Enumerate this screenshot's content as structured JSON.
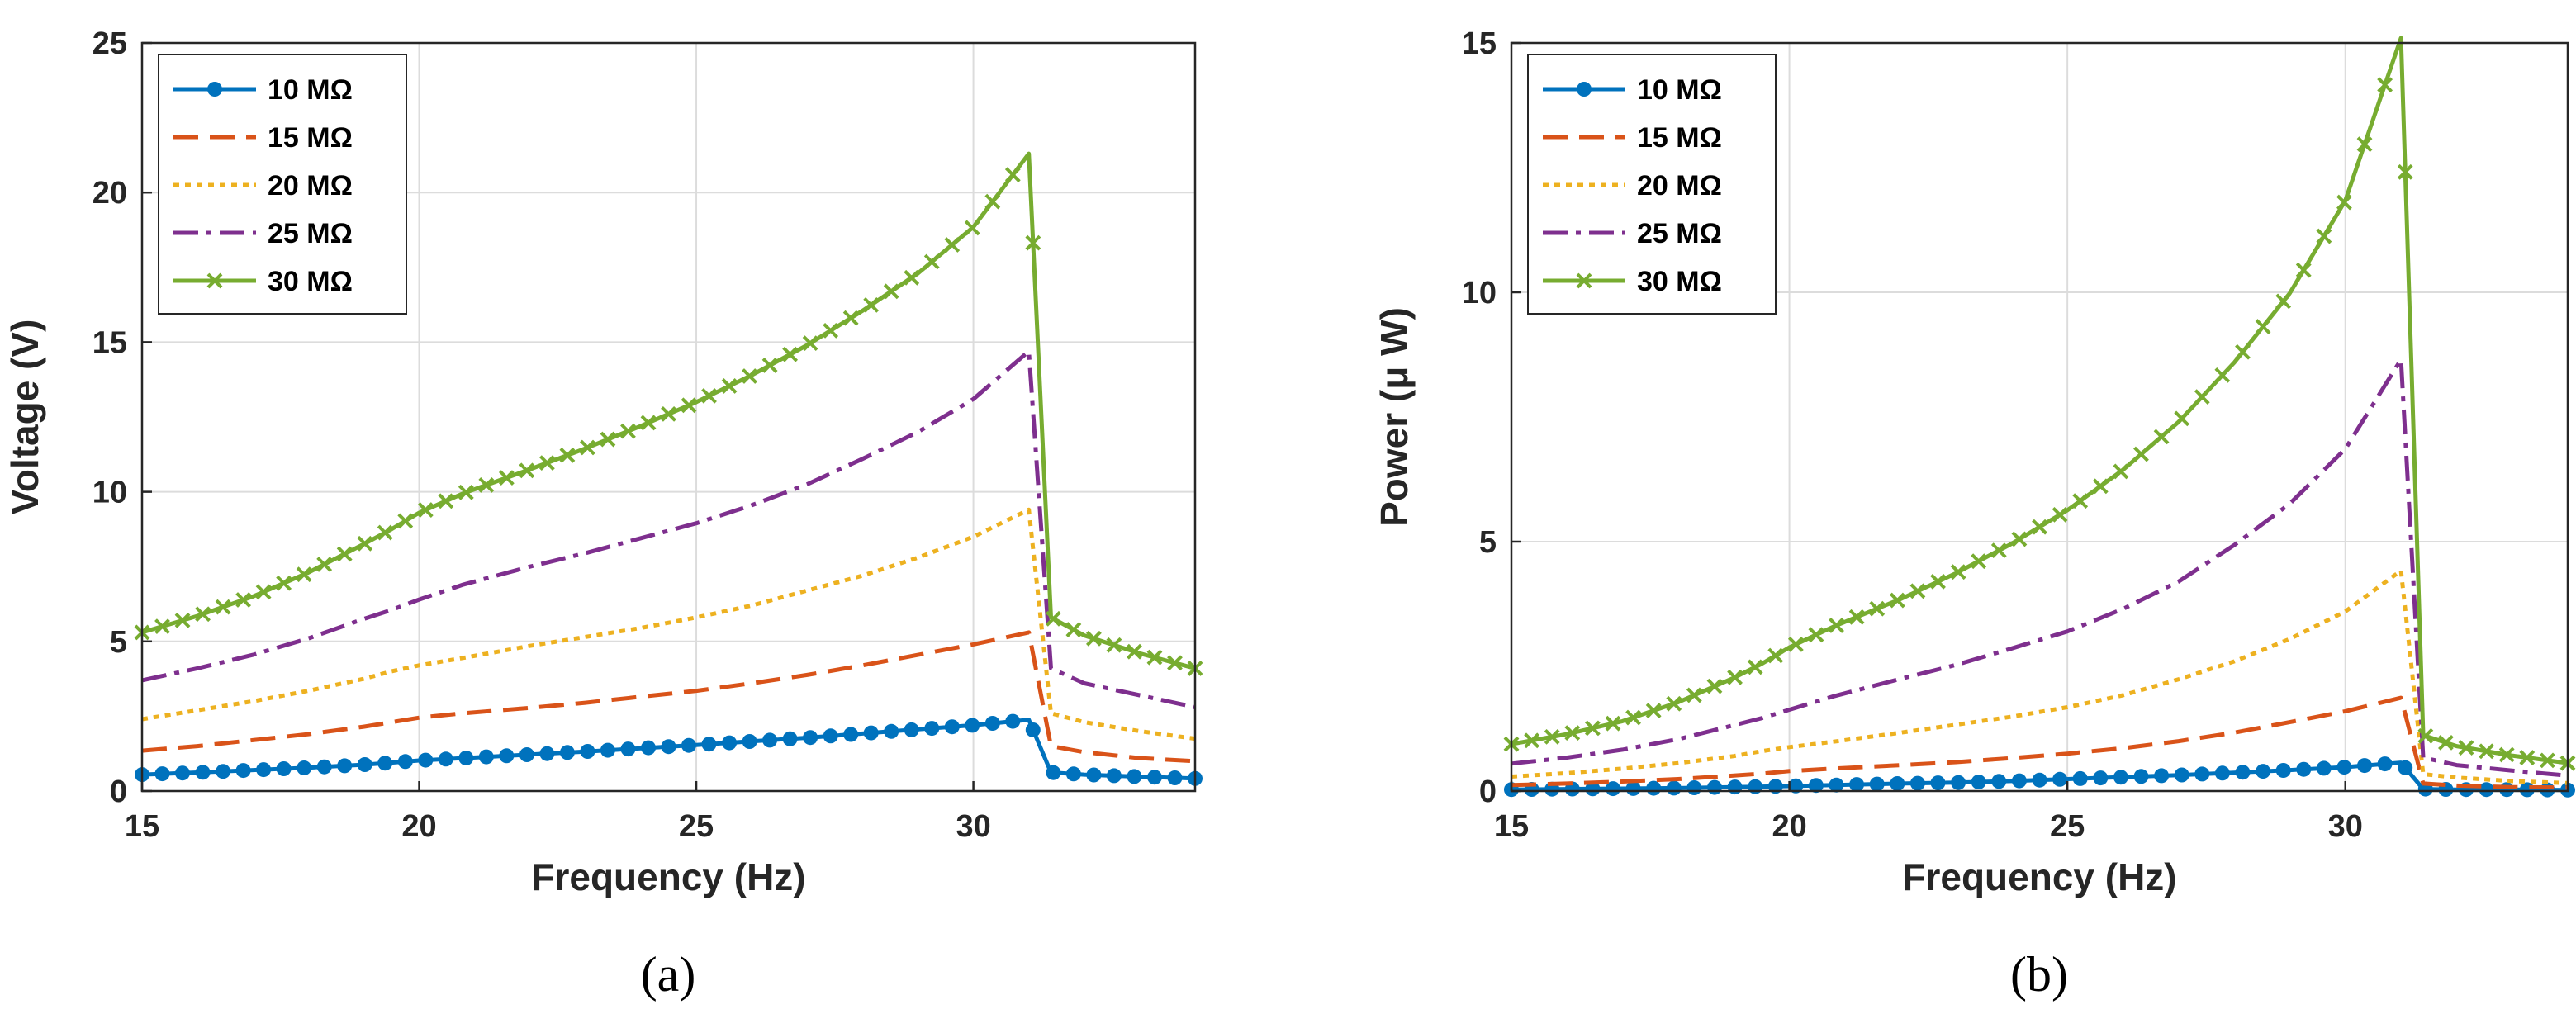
{
  "chart_data": [
    {
      "type": "line",
      "panel_label": "(a)",
      "xlabel": "Frequency (Hz)",
      "ylabel": "Voltage (V)",
      "xlim": [
        15,
        34
      ],
      "ylim": [
        0,
        25
      ],
      "xticks": [
        15,
        20,
        25,
        30
      ],
      "yticks": [
        0,
        5,
        10,
        15,
        20,
        25
      ],
      "grid": true,
      "legend_position": "top-left",
      "x": [
        15,
        16,
        17,
        18,
        19,
        19.5,
        20,
        20.8,
        22,
        23,
        24,
        25,
        26,
        27,
        28,
        29,
        30,
        31,
        31.4,
        32,
        33,
        34
      ],
      "series": [
        {
          "name": "10 MΩ",
          "color": "#0072BD",
          "style": "solid",
          "marker": "dot",
          "values": [
            0.55,
            0.62,
            0.7,
            0.78,
            0.88,
            0.95,
            1.02,
            1.1,
            1.22,
            1.32,
            1.43,
            1.54,
            1.66,
            1.78,
            1.92,
            2.06,
            2.2,
            2.38,
            0.62,
            0.55,
            0.48,
            0.42
          ]
        },
        {
          "name": "15 MΩ",
          "color": "#D95319",
          "style": "dashed",
          "marker": "none",
          "values": [
            1.35,
            1.5,
            1.7,
            1.9,
            2.15,
            2.3,
            2.45,
            2.6,
            2.78,
            2.95,
            3.15,
            3.35,
            3.6,
            3.88,
            4.2,
            4.55,
            4.9,
            5.3,
            1.5,
            1.3,
            1.1,
            1.0
          ]
        },
        {
          "name": "20 MΩ",
          "color": "#EDB120",
          "style": "dotted",
          "marker": "none",
          "values": [
            2.4,
            2.7,
            3.0,
            3.35,
            3.75,
            4.0,
            4.2,
            4.45,
            4.85,
            5.15,
            5.45,
            5.8,
            6.2,
            6.7,
            7.2,
            7.8,
            8.5,
            9.4,
            2.6,
            2.3,
            2.0,
            1.75
          ]
        },
        {
          "name": "25 MΩ",
          "color": "#7E2F8E",
          "style": "dashdot",
          "marker": "none",
          "values": [
            3.7,
            4.1,
            4.55,
            5.1,
            5.75,
            6.05,
            6.4,
            6.9,
            7.5,
            7.95,
            8.45,
            8.95,
            9.55,
            10.25,
            11.1,
            12.0,
            13.1,
            14.7,
            4.1,
            3.6,
            3.2,
            2.8
          ]
        },
        {
          "name": "30 MΩ",
          "color": "#77AC30",
          "style": "solid",
          "marker": "x",
          "values": [
            5.3,
            5.85,
            6.5,
            7.3,
            8.25,
            8.75,
            9.3,
            9.95,
            10.75,
            11.45,
            12.2,
            13.0,
            13.9,
            14.9,
            16.05,
            17.3,
            18.85,
            21.3,
            5.8,
            5.2,
            4.6,
            4.1
          ]
        }
      ]
    },
    {
      "type": "line",
      "panel_label": "(b)",
      "xlabel": "Frequency (Hz)",
      "ylabel": "Power (μ W)",
      "xlim": [
        15,
        34
      ],
      "ylim": [
        0,
        15
      ],
      "xticks": [
        15,
        20,
        25,
        30
      ],
      "yticks": [
        0,
        5,
        10,
        15
      ],
      "grid": true,
      "legend_position": "top-left",
      "x": [
        15,
        16,
        17,
        18,
        19,
        19.5,
        20,
        20.8,
        22,
        23,
        24,
        25,
        26,
        27,
        28,
        29,
        30,
        31,
        31.4,
        32,
        33,
        34
      ],
      "series": [
        {
          "name": "10 MΩ",
          "color": "#0072BD",
          "style": "solid",
          "marker": "dot",
          "values": [
            0.03,
            0.04,
            0.05,
            0.06,
            0.08,
            0.09,
            0.1,
            0.12,
            0.15,
            0.17,
            0.2,
            0.24,
            0.28,
            0.32,
            0.37,
            0.42,
            0.48,
            0.57,
            0.04,
            0.03,
            0.03,
            0.02
          ]
        },
        {
          "name": "15 MΩ",
          "color": "#D95319",
          "style": "dashed",
          "marker": "none",
          "values": [
            0.12,
            0.15,
            0.19,
            0.24,
            0.31,
            0.35,
            0.4,
            0.45,
            0.52,
            0.58,
            0.66,
            0.75,
            0.86,
            1.0,
            1.17,
            1.38,
            1.6,
            1.87,
            0.15,
            0.11,
            0.08,
            0.07
          ]
        },
        {
          "name": "20 MΩ",
          "color": "#EDB120",
          "style": "dotted",
          "marker": "none",
          "values": [
            0.29,
            0.36,
            0.45,
            0.56,
            0.7,
            0.8,
            0.88,
            0.99,
            1.17,
            1.33,
            1.49,
            1.68,
            1.92,
            2.24,
            2.6,
            3.05,
            3.6,
            4.42,
            0.34,
            0.27,
            0.2,
            0.16
          ]
        },
        {
          "name": "25 MΩ",
          "color": "#7E2F8E",
          "style": "dashdot",
          "marker": "none",
          "values": [
            0.55,
            0.67,
            0.83,
            1.04,
            1.32,
            1.46,
            1.63,
            1.9,
            2.25,
            2.53,
            2.86,
            3.2,
            3.65,
            4.2,
            4.93,
            5.76,
            6.86,
            8.65,
            0.67,
            0.52,
            0.41,
            0.31
          ]
        },
        {
          "name": "30 MΩ",
          "color": "#77AC30",
          "style": "solid",
          "marker": "x",
          "values": [
            0.94,
            1.14,
            1.4,
            1.78,
            2.27,
            2.55,
            2.88,
            3.3,
            3.85,
            4.37,
            4.96,
            5.63,
            6.44,
            7.4,
            8.59,
            9.98,
            11.84,
            15.1,
            1.12,
            0.9,
            0.71,
            0.56
          ]
        }
      ]
    }
  ]
}
